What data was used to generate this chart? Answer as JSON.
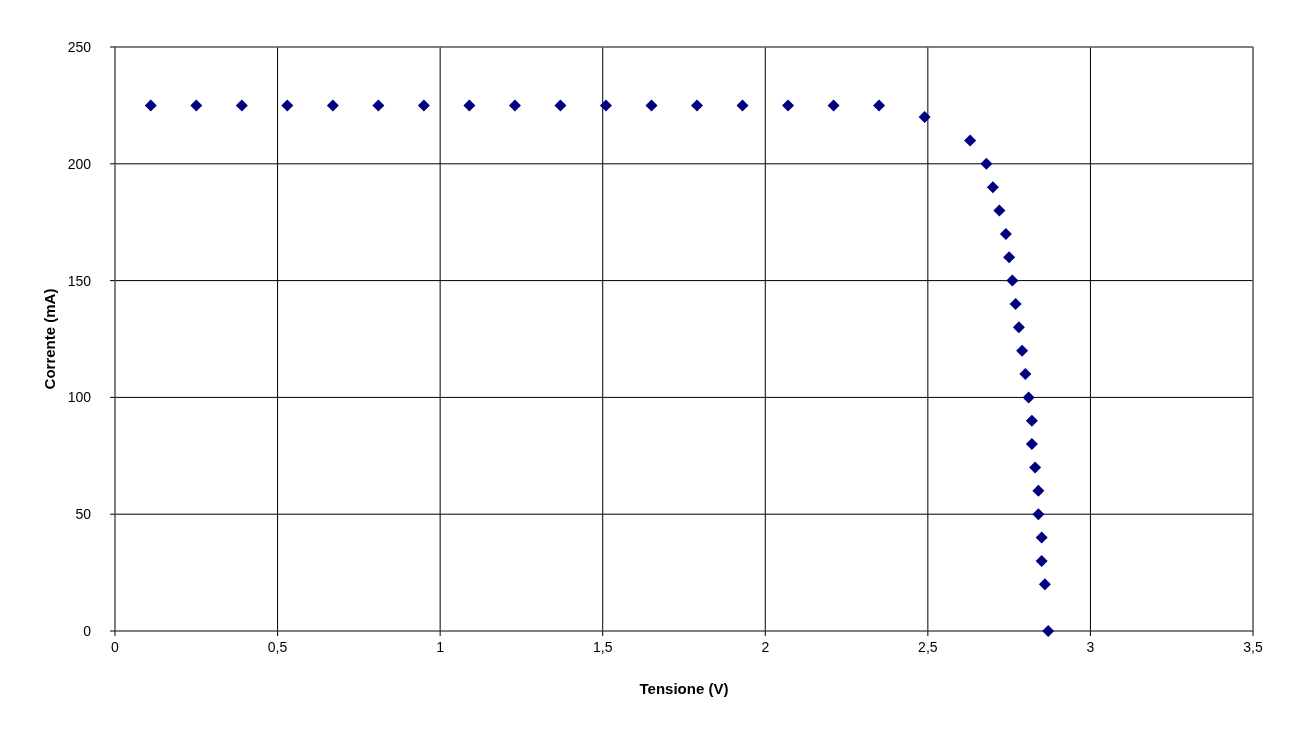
{
  "chart_data": {
    "type": "scatter",
    "xlabel": "Tensione (V)",
    "ylabel": "Corrente (mA)",
    "x": [
      0.11,
      0.25,
      0.39,
      0.53,
      0.67,
      0.81,
      0.95,
      1.09,
      1.23,
      1.37,
      1.51,
      1.65,
      1.79,
      1.93,
      2.07,
      2.21,
      2.35,
      2.49,
      2.63,
      2.68,
      2.7,
      2.72,
      2.74,
      2.75,
      2.76,
      2.77,
      2.78,
      2.79,
      2.8,
      2.81,
      2.82,
      2.82,
      2.83,
      2.84,
      2.84,
      2.85,
      2.85,
      2.86,
      2.87
    ],
    "series": [
      {
        "color": "#000080",
        "values": [
          225,
          225,
          225,
          225,
          225,
          225,
          225,
          225,
          225,
          225,
          225,
          225,
          225,
          225,
          225,
          225,
          225,
          220,
          210,
          200,
          190,
          180,
          170,
          160,
          150,
          140,
          130,
          120,
          110,
          100,
          90,
          80,
          70,
          60,
          50,
          40,
          30,
          20,
          0
        ]
      }
    ],
    "xlim": [
      0,
      3.5
    ],
    "xticks": [
      0,
      {
        "value": 0.5,
        "label": "0,5"
      },
      1,
      {
        "value": 1.5,
        "label": "1,5"
      },
      2,
      {
        "value": 2.5,
        "label": "2,5"
      },
      3,
      {
        "value": 3.5,
        "label": "3,5"
      }
    ],
    "ylim": [
      0,
      250
    ],
    "yticks": [
      0,
      50,
      100,
      150,
      200,
      250
    ],
    "grid": true,
    "marker": "diamond"
  }
}
